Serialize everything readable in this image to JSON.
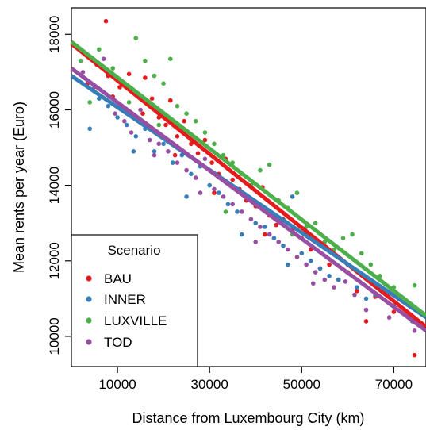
{
  "chart_data": {
    "type": "scatter",
    "title": "",
    "xlabel": "Distance from Luxembourg City (km)",
    "ylabel": "Mean rents per year (Euro)",
    "xlim": [
      0,
      77000
    ],
    "ylim": [
      9200,
      18700
    ],
    "xticks": [
      10000,
      30000,
      50000,
      70000
    ],
    "xtick_labels": [
      "10000",
      "30000",
      "50000",
      "70000"
    ],
    "yticks": [
      10000,
      12000,
      14000,
      16000,
      18000
    ],
    "ytick_labels": [
      "10000",
      "12000",
      "14000",
      "16000",
      "18000"
    ],
    "grid": false,
    "legend": {
      "title": "Scenario",
      "position": "bottom-left"
    },
    "series": [
      {
        "name": "BAU",
        "color": "#e41a1c",
        "trend": {
          "x": [
            0,
            77000
          ],
          "y": [
            17750,
            10250
          ]
        },
        "points": [
          [
            7500,
            18350
          ],
          [
            3500,
            16700
          ],
          [
            5500,
            17200
          ],
          [
            8000,
            16900
          ],
          [
            10500,
            16600
          ],
          [
            12500,
            16950
          ],
          [
            14500,
            16400
          ],
          [
            16000,
            16850
          ],
          [
            17500,
            16300
          ],
          [
            19000,
            15800
          ],
          [
            20500,
            15600
          ],
          [
            21500,
            16250
          ],
          [
            23000,
            15300
          ],
          [
            24500,
            15700
          ],
          [
            26000,
            15100
          ],
          [
            27500,
            14850
          ],
          [
            29000,
            15200
          ],
          [
            30500,
            14600
          ],
          [
            32000,
            14300
          ],
          [
            33500,
            14700
          ],
          [
            35000,
            14150
          ],
          [
            36500,
            13900
          ],
          [
            38000,
            13600
          ],
          [
            40000,
            13450
          ],
          [
            41500,
            13950
          ],
          [
            43000,
            13200
          ],
          [
            44500,
            12950
          ],
          [
            46000,
            13100
          ],
          [
            48000,
            12800
          ],
          [
            50000,
            12600
          ],
          [
            52000,
            12300
          ],
          [
            54000,
            11800
          ],
          [
            56000,
            11900
          ],
          [
            58000,
            11500
          ],
          [
            60000,
            11700
          ],
          [
            62000,
            11200
          ],
          [
            64000,
            10400
          ],
          [
            66000,
            11050
          ],
          [
            70000,
            10650
          ],
          [
            74500,
            9500
          ],
          [
            15500,
            15900
          ],
          [
            22500,
            14800
          ],
          [
            31000,
            13800
          ],
          [
            42000,
            12700
          ],
          [
            9000,
            16350
          ]
        ]
      },
      {
        "name": "INNER",
        "color": "#377eb8",
        "trend": {
          "x": [
            0,
            77000
          ],
          "y": [
            16900,
            10500
          ]
        },
        "points": [
          [
            4000,
            15500
          ],
          [
            6000,
            16300
          ],
          [
            8000,
            16100
          ],
          [
            10000,
            15800
          ],
          [
            12000,
            15600
          ],
          [
            14000,
            15300
          ],
          [
            16000,
            15500
          ],
          [
            18000,
            14900
          ],
          [
            20000,
            15100
          ],
          [
            22000,
            14600
          ],
          [
            24000,
            14800
          ],
          [
            26000,
            14300
          ],
          [
            28000,
            14500
          ],
          [
            30000,
            14000
          ],
          [
            32000,
            13800
          ],
          [
            34000,
            13500
          ],
          [
            36000,
            13300
          ],
          [
            38000,
            13700
          ],
          [
            40000,
            13000
          ],
          [
            42000,
            12900
          ],
          [
            44000,
            12600
          ],
          [
            46000,
            12400
          ],
          [
            48000,
            13700
          ],
          [
            50000,
            12200
          ],
          [
            52000,
            12000
          ],
          [
            54000,
            11800
          ],
          [
            56000,
            11600
          ],
          [
            58000,
            11500
          ],
          [
            60000,
            11900
          ],
          [
            62000,
            11300
          ],
          [
            64000,
            11000
          ],
          [
            66000,
            11100
          ],
          [
            70000,
            10800
          ],
          [
            74000,
            10400
          ],
          [
            13500,
            14900
          ],
          [
            25000,
            13700
          ],
          [
            37000,
            12700
          ],
          [
            47000,
            11900
          ]
        ]
      },
      {
        "name": "LUXVILLE",
        "color": "#4daf4a",
        "trend": {
          "x": [
            0,
            77000
          ],
          "y": [
            17800,
            10550
          ]
        },
        "points": [
          [
            2000,
            17300
          ],
          [
            4000,
            16200
          ],
          [
            6000,
            17600
          ],
          [
            9000,
            17100
          ],
          [
            11000,
            16700
          ],
          [
            14000,
            17900
          ],
          [
            16000,
            17300
          ],
          [
            18000,
            16900
          ],
          [
            20000,
            16700
          ],
          [
            21500,
            17350
          ],
          [
            23000,
            16100
          ],
          [
            25000,
            15900
          ],
          [
            27000,
            15700
          ],
          [
            29000,
            15400
          ],
          [
            31000,
            15100
          ],
          [
            33000,
            14800
          ],
          [
            35000,
            14600
          ],
          [
            37000,
            14300
          ],
          [
            39000,
            14000
          ],
          [
            41000,
            14400
          ],
          [
            43000,
            14550
          ],
          [
            45000,
            13600
          ],
          [
            47000,
            13400
          ],
          [
            49000,
            13800
          ],
          [
            51000,
            12900
          ],
          [
            53000,
            13000
          ],
          [
            55000,
            12500
          ],
          [
            57000,
            12300
          ],
          [
            59000,
            12600
          ],
          [
            61000,
            12700
          ],
          [
            63000,
            12200
          ],
          [
            65000,
            11900
          ],
          [
            67000,
            11600
          ],
          [
            70000,
            11300
          ],
          [
            74500,
            11350
          ],
          [
            12500,
            16200
          ],
          [
            19000,
            15600
          ],
          [
            26000,
            15200
          ],
          [
            33500,
            13300
          ],
          [
            48000,
            12700
          ]
        ]
      },
      {
        "name": "TOD",
        "color": "#984ea3",
        "trend": {
          "x": [
            0,
            77000
          ],
          "y": [
            17100,
            10150
          ]
        },
        "points": [
          [
            2500,
            17000
          ],
          [
            5000,
            16600
          ],
          [
            7000,
            17350
          ],
          [
            9500,
            15900
          ],
          [
            11500,
            15700
          ],
          [
            13000,
            15400
          ],
          [
            15000,
            16000
          ],
          [
            17000,
            15200
          ],
          [
            19000,
            15100
          ],
          [
            21000,
            14900
          ],
          [
            23000,
            14600
          ],
          [
            25000,
            14400
          ],
          [
            27000,
            14200
          ],
          [
            29000,
            14700
          ],
          [
            31000,
            13900
          ],
          [
            33000,
            13700
          ],
          [
            35000,
            13500
          ],
          [
            37000,
            13300
          ],
          [
            39000,
            13100
          ],
          [
            41000,
            12900
          ],
          [
            43000,
            12700
          ],
          [
            45000,
            12500
          ],
          [
            47000,
            12300
          ],
          [
            49000,
            12100
          ],
          [
            51000,
            11900
          ],
          [
            53000,
            11700
          ],
          [
            55000,
            11500
          ],
          [
            57000,
            11300
          ],
          [
            59500,
            11450
          ],
          [
            61500,
            11100
          ],
          [
            64000,
            10700
          ],
          [
            66500,
            11300
          ],
          [
            69000,
            10500
          ],
          [
            74500,
            10150
          ],
          [
            18000,
            14800
          ],
          [
            28000,
            13800
          ],
          [
            40000,
            12500
          ],
          [
            52500,
            11400
          ]
        ]
      }
    ]
  }
}
